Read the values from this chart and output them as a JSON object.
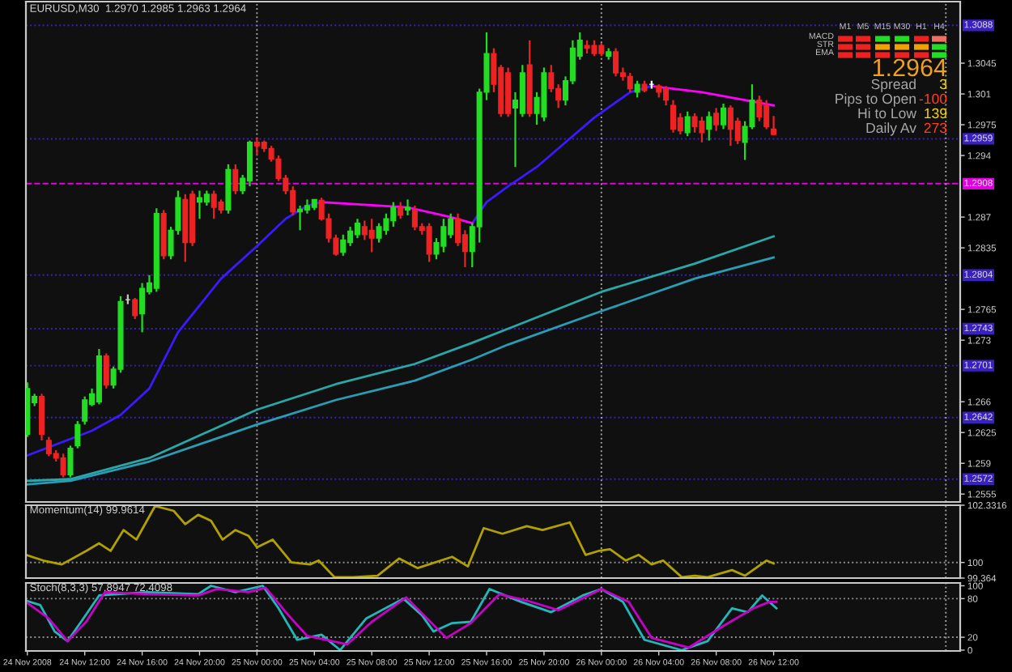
{
  "chart_data": [
    {
      "type": "candlestick",
      "title": "EURUSD,M30  1.2970 1.2985 1.2963 1.2964",
      "x": [
        "2008-11-24T08:00",
        "2008-11-24T08:30",
        "2008-11-24T09:00",
        "2008-11-24T09:30",
        "2008-11-24T10:00",
        "2008-11-24T10:30",
        "2008-11-24T11:00",
        "2008-11-24T11:30",
        "2008-11-24T12:00",
        "2008-11-24T12:30",
        "2008-11-24T13:00",
        "2008-11-24T13:30",
        "2008-11-24T14:00",
        "2008-11-24T14:30",
        "2008-11-24T15:00",
        "2008-11-24T15:30",
        "2008-11-24T16:00",
        "2008-11-24T16:30",
        "2008-11-24T17:00",
        "2008-11-24T17:30",
        "2008-11-24T18:00",
        "2008-11-24T18:30",
        "2008-11-24T19:00",
        "2008-11-24T19:30",
        "2008-11-24T20:00",
        "2008-11-24T20:30",
        "2008-11-24T21:00",
        "2008-11-24T21:30",
        "2008-11-24T22:00",
        "2008-11-24T22:30",
        "2008-11-24T23:00",
        "2008-11-24T23:30",
        "2008-11-25T00:00",
        "2008-11-25T00:30",
        "2008-11-25T01:00",
        "2008-11-25T01:30",
        "2008-11-25T02:00",
        "2008-11-25T02:30",
        "2008-11-25T03:00",
        "2008-11-25T03:30",
        "2008-11-25T04:00",
        "2008-11-25T04:30",
        "2008-11-25T05:00",
        "2008-11-25T05:30",
        "2008-11-25T06:00",
        "2008-11-25T06:30",
        "2008-11-25T07:00",
        "2008-11-25T07:30",
        "2008-11-25T08:00",
        "2008-11-25T08:30",
        "2008-11-25T09:00",
        "2008-11-25T09:30",
        "2008-11-25T10:00",
        "2008-11-25T10:30",
        "2008-11-25T11:00",
        "2008-11-25T11:30",
        "2008-11-25T12:00",
        "2008-11-25T12:30",
        "2008-11-25T13:00",
        "2008-11-25T13:30",
        "2008-11-25T14:00",
        "2008-11-25T14:30",
        "2008-11-25T15:00",
        "2008-11-25T15:30",
        "2008-11-25T16:00",
        "2008-11-25T16:30",
        "2008-11-25T17:00",
        "2008-11-25T17:30",
        "2008-11-25T18:00",
        "2008-11-25T18:30",
        "2008-11-25T19:00",
        "2008-11-25T19:30",
        "2008-11-25T20:00",
        "2008-11-25T20:30",
        "2008-11-25T21:00",
        "2008-11-25T21:30",
        "2008-11-25T22:00",
        "2008-11-25T22:30",
        "2008-11-25T23:00",
        "2008-11-25T23:30",
        "2008-11-26T00:00",
        "2008-11-26T00:30",
        "2008-11-26T01:00",
        "2008-11-26T01:30",
        "2008-11-26T02:00",
        "2008-11-26T02:30",
        "2008-11-26T03:00",
        "2008-11-26T03:30",
        "2008-11-26T04:00",
        "2008-11-26T04:30",
        "2008-11-26T05:00",
        "2008-11-26T05:30",
        "2008-11-26T06:00",
        "2008-11-26T06:30",
        "2008-11-26T07:00",
        "2008-11-26T07:30",
        "2008-11-26T08:00",
        "2008-11-26T08:30",
        "2008-11-26T09:00",
        "2008-11-26T09:30",
        "2008-11-26T10:00",
        "2008-11-26T10:30",
        "2008-11-26T11:00",
        "2008-11-26T11:30",
        "2008-11-26T12:00"
      ],
      "ohlc": [
        [
          1.2623,
          1.2682,
          1.262,
          1.2675
        ],
        [
          1.2659,
          1.2669,
          1.2655,
          1.2666
        ],
        [
          1.2666,
          1.2669,
          1.2616,
          1.2623
        ],
        [
          1.2616,
          1.262,
          1.2598,
          1.2601
        ],
        [
          1.2601,
          1.2605,
          1.2592,
          1.2596
        ],
        [
          1.2596,
          1.2601,
          1.2574,
          1.2577
        ],
        [
          1.2577,
          1.261,
          1.2574,
          1.2607
        ],
        [
          1.261,
          1.2638,
          1.2607,
          1.2634
        ],
        [
          1.2638,
          1.2666,
          1.2634,
          1.2662
        ],
        [
          1.2657,
          1.2675,
          1.2655,
          1.2669
        ],
        [
          1.266,
          1.272,
          1.2657,
          1.2712
        ],
        [
          1.2712,
          1.2715,
          1.2675,
          1.2679
        ],
        [
          1.2679,
          1.27,
          1.2675,
          1.2697
        ],
        [
          1.2697,
          1.278,
          1.2693,
          1.2774
        ],
        [
          1.2776,
          1.2782,
          1.2771,
          1.2776
        ],
        [
          1.2776,
          1.2778,
          1.2754,
          1.2758
        ],
        [
          1.276,
          1.2795,
          1.2739,
          1.2789
        ],
        [
          1.2785,
          1.2804,
          1.2782,
          1.2795
        ],
        [
          1.2789,
          1.288,
          1.2785,
          1.2874
        ],
        [
          1.2874,
          1.2878,
          1.2822,
          1.2826
        ],
        [
          1.2826,
          1.2859,
          1.2822,
          1.2855
        ],
        [
          1.2855,
          1.29,
          1.285,
          1.2892
        ],
        [
          1.289,
          1.2896,
          1.2819,
          1.2841
        ],
        [
          1.2896,
          1.29,
          1.2837,
          1.2841
        ],
        [
          1.2887,
          1.29,
          1.2868,
          1.2892
        ],
        [
          1.2887,
          1.29,
          1.2883,
          1.2896
        ],
        [
          1.2896,
          1.29,
          1.2868,
          1.2881
        ],
        [
          1.2887,
          1.289,
          1.2874,
          1.2878
        ],
        [
          1.2878,
          1.293,
          1.2874,
          1.2924
        ],
        [
          1.2924,
          1.293,
          1.2896,
          1.29
        ],
        [
          1.29,
          1.2918,
          1.2896,
          1.2914
        ],
        [
          1.2911,
          1.2957,
          1.2905,
          1.2955
        ],
        [
          1.2955,
          1.296,
          1.294,
          1.2951
        ],
        [
          1.2955,
          1.2957,
          1.2944,
          1.2948
        ],
        [
          1.2948,
          1.2951,
          1.2933,
          1.2936
        ],
        [
          1.2936,
          1.294,
          1.2911,
          1.2914
        ],
        [
          1.2914,
          1.2918,
          1.2896,
          1.29
        ],
        [
          1.29,
          1.2905,
          1.2872,
          1.2876
        ],
        [
          1.2876,
          1.2883,
          1.2855,
          1.2879
        ],
        [
          1.2878,
          1.289,
          1.2874,
          1.2883
        ],
        [
          1.2881,
          1.289,
          1.2878,
          1.289
        ],
        [
          1.2889,
          1.2892,
          1.2866,
          1.2868
        ],
        [
          1.2868,
          1.2874,
          1.2841,
          1.2846
        ],
        [
          1.2846,
          1.285,
          1.2826,
          1.2828
        ],
        [
          1.283,
          1.285,
          1.2826,
          1.2844
        ],
        [
          1.2841,
          1.2859,
          1.2837,
          1.2854
        ],
        [
          1.285,
          1.2868,
          1.2846,
          1.2863
        ],
        [
          1.2859,
          1.2866,
          1.2844,
          1.285
        ],
        [
          1.2855,
          1.2868,
          1.283,
          1.2846
        ],
        [
          1.2846,
          1.2863,
          1.2841,
          1.2859
        ],
        [
          1.2855,
          1.2874,
          1.285,
          1.2868
        ],
        [
          1.2866,
          1.2887,
          1.2859,
          1.2881
        ],
        [
          1.2881,
          1.2887,
          1.2868,
          1.2872
        ],
        [
          1.2878,
          1.289,
          1.2872,
          1.2881
        ],
        [
          1.2878,
          1.2883,
          1.2855,
          1.2859
        ],
        [
          1.2859,
          1.2863,
          1.285,
          1.2855
        ],
        [
          1.2859,
          1.2863,
          1.2819,
          1.2828
        ],
        [
          1.2828,
          1.2846,
          1.2822,
          1.2841
        ],
        [
          1.2837,
          1.2868,
          1.283,
          1.2859
        ],
        [
          1.285,
          1.2874,
          1.2846,
          1.2868
        ],
        [
          1.2868,
          1.2874,
          1.2837,
          1.2841
        ],
        [
          1.285,
          1.2855,
          1.2813,
          1.2831
        ],
        [
          1.2831,
          1.2863,
          1.2813,
          1.2859
        ],
        [
          1.2859,
          1.3016,
          1.2841,
          1.3012
        ],
        [
          1.3012,
          1.308,
          1.3003,
          1.3056
        ],
        [
          1.3056,
          1.3062,
          1.3012,
          1.3021
        ],
        [
          1.304,
          1.3043,
          1.2984,
          1.2988
        ],
        [
          1.3034,
          1.304,
          1.2984,
          1.2988
        ],
        [
          1.2994,
          1.3012,
          1.2927,
          1.3003
        ],
        [
          1.2988,
          1.3043,
          1.2984,
          1.3034
        ],
        [
          1.3043,
          1.3071,
          1.2984,
          1.2988
        ],
        [
          1.2988,
          1.3012,
          1.2975,
          1.3006
        ],
        [
          1.2984,
          1.304,
          1.2979,
          1.3034
        ],
        [
          1.3034,
          1.3043,
          1.3012,
          1.3016
        ],
        [
          1.3016,
          1.3021,
          1.2994,
          1.3003
        ],
        [
          1.3003,
          1.303,
          1.2997,
          1.3025
        ],
        [
          1.3025,
          1.3071,
          1.3021,
          1.3062
        ],
        [
          1.3053,
          1.308,
          1.3049,
          1.3071
        ],
        [
          1.3065,
          1.3071,
          1.3056,
          1.3062
        ],
        [
          1.3065,
          1.3071,
          1.3053,
          1.3056
        ],
        [
          1.3065,
          1.3068,
          1.3053,
          1.3056
        ],
        [
          1.3053,
          1.3062,
          1.3049,
          1.3058
        ],
        [
          1.3058,
          1.3062,
          1.303,
          1.3034
        ],
        [
          1.3034,
          1.304,
          1.3025,
          1.303
        ],
        [
          1.303,
          1.3034,
          1.3012,
          1.3016
        ],
        [
          1.3012,
          1.3025,
          1.3006,
          1.3021
        ],
        [
          1.3021,
          1.3025,
          1.3012,
          1.3014
        ],
        [
          1.3021,
          1.3025,
          1.3016,
          1.3021
        ],
        [
          1.3019,
          1.3021,
          1.3006,
          1.3012
        ],
        [
          1.3016,
          1.3019,
          1.2997,
          1.3003
        ],
        [
          1.2997,
          1.3003,
          1.2966,
          1.297
        ],
        [
          1.2983,
          1.2988,
          1.2964,
          1.2968
        ],
        [
          1.2966,
          1.299,
          1.2962,
          1.2984
        ],
        [
          1.2984,
          1.2988,
          1.2966,
          1.2973
        ],
        [
          1.2979,
          1.2984,
          1.2955,
          1.2966
        ],
        [
          1.297,
          1.299,
          1.2957,
          1.2984
        ],
        [
          1.2988,
          1.2994,
          1.2968,
          1.2975
        ],
        [
          1.2975,
          1.2999,
          1.297,
          1.2994
        ],
        [
          1.2994,
          1.2997,
          1.2951,
          1.297
        ],
        [
          1.2979,
          1.2983,
          1.2953,
          1.2957
        ],
        [
          1.2955,
          1.2979,
          1.2935,
          1.2973
        ],
        [
          1.2973,
          1.3021,
          1.297,
          1.3003
        ],
        [
          1.3003,
          1.3008,
          1.2979,
          1.2984
        ],
        [
          1.2997,
          1.3003,
          1.297,
          1.2973
        ],
        [
          1.297,
          1.2985,
          1.2963,
          1.2964
        ]
      ],
      "colors": [
        "#22dd22",
        "#22dd22",
        "#ee2222",
        "#ee2222",
        "#ee2222",
        "#ee2222",
        "#22dd22",
        "#22dd22",
        "#22dd22",
        "#22dd22",
        "#22dd22",
        "#ee2222",
        "#22dd22",
        "#22dd22",
        "#c8c8c8",
        "#ee2222",
        "#22dd22",
        "#22dd22",
        "#22dd22",
        "#ee2222",
        "#22dd22",
        "#22dd22",
        "#ee2222",
        "#ee2222",
        "#22dd22",
        "#22dd22",
        "#ee2222",
        "#ee2222",
        "#22dd22",
        "#ee2222",
        "#22dd22",
        "#22dd22",
        "#ee2222",
        "#ee2222",
        "#ee2222",
        "#ee2222",
        "#ee2222",
        "#ee2222",
        "#22dd22",
        "#22dd22",
        "#22dd22",
        "#ee2222",
        "#ee2222",
        "#ee2222",
        "#22dd22",
        "#22dd22",
        "#22dd22",
        "#ee2222",
        "#ee2222",
        "#22dd22",
        "#22dd22",
        "#22dd22",
        "#ee2222",
        "#22dd22",
        "#ee2222",
        "#ee2222",
        "#ee2222",
        "#22dd22",
        "#22dd22",
        "#22dd22",
        "#ee2222",
        "#ee2222",
        "#22dd22",
        "#22dd22",
        "#22dd22",
        "#ee2222",
        "#ee2222",
        "#ee2222",
        "#22dd22",
        "#22dd22",
        "#ee2222",
        "#22dd22",
        "#22dd22",
        "#ee2222",
        "#ee2222",
        "#22dd22",
        "#22dd22",
        "#22dd22",
        "#ee2222",
        "#ee2222",
        "#ee2222",
        "#22dd22",
        "#ee2222",
        "#ee2222",
        "#ee2222",
        "#22dd22",
        "#ee2222",
        "#ffffff",
        "#ee2222",
        "#ee2222",
        "#ee2222",
        "#ee2222",
        "#22dd22",
        "#ee2222",
        "#ee2222",
        "#22dd22",
        "#ee2222",
        "#22dd22",
        "#ee2222",
        "#ee2222",
        "#22dd22",
        "#22dd22",
        "#ee2222",
        "#ee2222",
        "#ee2222"
      ],
      "series": [
        {
          "type": "line",
          "color": "#3a1aff",
          "x": [
            "2008-11-24T08:00",
            "2008-11-24T12:30",
            "2008-11-24T14:30",
            "2008-11-24T16:30",
            "2008-11-24T18:30",
            "2008-11-24T21:30",
            "2008-11-25T00:00",
            "2008-11-25T02:00",
            "2008-11-25T03:30",
            "2008-11-25T04:30",
            "2008-11-25T09:00",
            "2008-11-25T15:00",
            "2008-11-25T16:00",
            "2008-11-25T17:30",
            "2008-11-25T19:30",
            "2008-11-25T21:30",
            "2008-11-25T23:30",
            "2008-11-26T02:00",
            "2008-11-26T03:30"
          ],
          "values": [
            1.2599,
            1.2627,
            1.2645,
            1.2675,
            1.2739,
            1.28,
            1.2837,
            1.2868,
            1.2883,
            1.2887,
            null,
            1.2863,
            1.2887,
            1.2905,
            1.2927,
            1.2955,
            1.2983,
            1.3012,
            1.3019
          ]
        },
        {
          "type": "line",
          "color": "#ff00ff",
          "x": [
            "2008-11-25T04:30",
            "2008-11-25T10:30",
            "2008-11-25T13:30",
            "2008-11-25T15:00",
            "2008-11-25T21:00",
            "2008-11-26T03:30",
            "2008-11-26T07:00",
            "2008-11-26T12:00"
          ],
          "values": [
            1.2887,
            1.2881,
            1.287,
            1.2863,
            null,
            1.3019,
            1.3012,
            1.2997
          ]
        },
        {
          "type": "line",
          "color": "#2aa8a8",
          "x": [
            "2008-11-24T08:00",
            "2008-11-24T11:00",
            "2008-11-24T16:30",
            "2008-11-25T00:00",
            "2008-11-25T05:30",
            "2008-11-25T11:00",
            "2008-11-25T15:00",
            "2008-11-25T17:30",
            "2008-11-26T00:00",
            "2008-11-26T06:30",
            "2008-11-26T12:00"
          ],
          "values": [
            1.257,
            1.2572,
            1.2596,
            1.2651,
            1.268,
            1.2703,
            1.2727,
            1.2743,
            1.2785,
            1.2817,
            1.2848
          ]
        },
        {
          "type": "line",
          "color": "#2a9cb4",
          "x": [
            "2008-11-24T08:00",
            "2008-11-24T11:00",
            "2008-11-24T16:30",
            "2008-11-25T00:00",
            "2008-11-25T05:30",
            "2008-11-25T11:00",
            "2008-11-25T15:00",
            "2008-11-25T17:30",
            "2008-11-26T00:00",
            "2008-11-26T06:30",
            "2008-11-26T12:00"
          ],
          "values": [
            1.2566,
            1.257,
            1.2592,
            1.2634,
            1.2662,
            1.2684,
            1.2708,
            1.2725,
            1.2763,
            1.28,
            1.2824
          ]
        }
      ],
      "xlim": [
        "2008-11-24T07:54",
        "2008-11-27T01:00"
      ],
      "ylim": [
        1.2546,
        1.3115
      ],
      "yticks": [
        1.3045,
        1.301,
        1.2975,
        1.294,
        1.287,
        1.2835,
        1.2765,
        1.273,
        1.266,
        1.2625,
        1.259,
        1.2555
      ],
      "tick_labels": "y",
      "ref_lines": [
        {
          "axis": "y",
          "value": 1.3088,
          "label": "1.3088",
          "color": "#3a20c0",
          "line_style": "dotted"
        },
        {
          "axis": "y",
          "value": 1.2959,
          "label": "1.2959",
          "color": "#3a20c0",
          "line_style": "dotted"
        },
        {
          "axis": "y",
          "value": 1.2908,
          "label": "1.2908",
          "color": "#e000e0",
          "line_style": "dashed"
        },
        {
          "axis": "y",
          "value": 1.2804,
          "label": "1.2804",
          "color": "#3a20c0",
          "line_style": "dotted"
        },
        {
          "axis": "y",
          "value": 1.2743,
          "label": "1.2743",
          "color": "#3a20c0",
          "line_style": "dotted"
        },
        {
          "axis": "y",
          "value": 1.2701,
          "label": "1.2701",
          "color": "#3a20c0",
          "line_style": "dotted"
        },
        {
          "axis": "y",
          "value": 1.2642,
          "label": "1.2642",
          "color": "#3a20c0",
          "line_style": "dotted"
        },
        {
          "axis": "y",
          "value": 1.2572,
          "label": "1.2572",
          "color": "#3a20c0",
          "line_style": "dotted"
        },
        {
          "axis": "x",
          "value": "2008-11-25T00:00",
          "color": "#a0a0a0",
          "line_style": "dotted"
        },
        {
          "axis": "x",
          "value": "2008-11-26T00:00",
          "color": "#a0a0a0",
          "line_style": "dotted"
        },
        {
          "axis": "x",
          "value": "2008-11-27T00:00",
          "color": "#a0a0a0",
          "line_style": "dotted"
        }
      ],
      "annotations": [
        "1.2964",
        "Spread",
        "3",
        "Pips to Open",
        "-100",
        "Hi to Low",
        "139",
        "Daily Av",
        "273",
        "M1",
        "M5",
        "M15",
        "M30",
        "H1",
        "H4",
        "MACD",
        "STR",
        "EMA"
      ]
    },
    {
      "type": "line",
      "title": "Momentum(14) 99.9614",
      "series": [
        {
          "color": "#b0a000",
          "x": [
            "2008-11-24T07:54",
            "2008-11-24T09:06",
            "2008-11-24T10:24",
            "2008-11-24T12:06",
            "2008-11-24T13:00",
            "2008-11-24T13:48",
            "2008-11-24T14:42",
            "2008-11-24T15:36",
            "2008-11-24T16:54",
            "2008-11-24T18:12",
            "2008-11-24T19:00",
            "2008-11-24T19:54",
            "2008-11-24T20:48",
            "2008-11-24T21:36",
            "2008-11-24T22:30",
            "2008-11-24T23:24",
            "2008-11-25T00:00",
            "2008-11-25T01:06",
            "2008-11-25T02:24",
            "2008-11-25T03:42",
            "2008-11-25T04:18",
            "2008-11-25T05:24",
            "2008-11-25T06:42",
            "2008-11-25T08:24",
            "2008-11-25T09:54",
            "2008-11-25T11:12",
            "2008-11-25T13:36",
            "2008-11-25T14:42",
            "2008-11-25T15:48",
            "2008-11-25T17:06",
            "2008-11-25T18:48",
            "2008-11-25T19:54",
            "2008-11-25T21:48",
            "2008-11-25T22:54",
            "2008-11-25T23:48",
            "2008-11-26T00:36",
            "2008-11-26T01:42",
            "2008-11-26T02:36",
            "2008-11-26T03:30",
            "2008-11-26T04:18",
            "2008-11-26T05:36",
            "2008-11-26T06:30",
            "2008-11-26T07:24",
            "2008-11-26T09:06",
            "2008-11-26T10:00",
            "2008-11-26T11:30",
            "2008-11-26T12:00"
          ],
          "values": [
            100.31,
            100.08,
            99.92,
            100.47,
            100.78,
            100.47,
            101.32,
            100.93,
            102.3,
            102.1,
            101.56,
            101.94,
            101.7,
            100.93,
            101.32,
            101.09,
            100.62,
            100.93,
            100.0,
            99.92,
            100.08,
            99.4,
            99.4,
            99.46,
            100.16,
            99.77,
            100.23,
            99.84,
            101.4,
            101.17,
            101.48,
            101.32,
            101.63,
            100.31,
            100.47,
            100.54,
            100.08,
            100.31,
            99.92,
            100.08,
            99.4,
            99.46,
            99.4,
            99.69,
            99.46,
            100.08,
            99.96
          ]
        }
      ],
      "xlim": [
        "2008-11-24T07:54",
        "2008-11-27T01:00"
      ],
      "ylim": [
        99.364,
        102.3316
      ],
      "yticks": [
        102.3316,
        100,
        99.364
      ],
      "tick_labels": "y",
      "ref_lines": [
        {
          "axis": "y",
          "value": 100,
          "color": "#909090",
          "line_style": "dotted"
        },
        {
          "axis": "x",
          "value": "2008-11-25T00:00",
          "color": "#a0a0a0",
          "line_style": "dotted"
        },
        {
          "axis": "x",
          "value": "2008-11-26T00:00",
          "color": "#a0a0a0",
          "line_style": "dotted"
        },
        {
          "axis": "x",
          "value": "2008-11-27T00:00",
          "color": "#a0a0a0",
          "line_style": "dotted"
        }
      ]
    },
    {
      "type": "line",
      "title": "Stoch(8,3,3) 57.8947 72.4098",
      "series": [
        {
          "color": "#20b8b8",
          "x": [
            "2008-11-24T07:54",
            "2008-11-24T08:54",
            "2008-11-24T09:54",
            "2008-11-24T10:48",
            "2008-11-24T11:54",
            "2008-11-24T13:00",
            "2008-11-24T16:24",
            "2008-11-24T19:54",
            "2008-11-24T20:48",
            "2008-11-24T22:30",
            "2008-11-25T00:24",
            "2008-11-25T01:30",
            "2008-11-25T02:48",
            "2008-11-25T04:30",
            "2008-11-25T05:48",
            "2008-11-25T07:36",
            "2008-11-25T10:12",
            "2008-11-25T11:30",
            "2008-11-25T12:18",
            "2008-11-25T13:36",
            "2008-11-25T14:54",
            "2008-11-25T16:12",
            "2008-11-25T18:24",
            "2008-11-25T20:30",
            "2008-11-25T22:42",
            "2008-11-26T00:00",
            "2008-11-26T01:30",
            "2008-11-26T03:00",
            "2008-11-26T05:36",
            "2008-11-26T07:24",
            "2008-11-26T09:06",
            "2008-11-26T10:12",
            "2008-11-26T11:12",
            "2008-11-26T12:12"
          ],
          "values": [
            77,
            70,
            29,
            14,
            49,
            85,
            90,
            87,
            100,
            90,
            100,
            65,
            16,
            24,
            0,
            49,
            80,
            54,
            29,
            42,
            44,
            95,
            75,
            59,
            85,
            95,
            75,
            16,
            0,
            14,
            65,
            59,
            85,
            65
          ]
        },
        {
          "color": "#c800c8",
          "x": [
            "2008-11-24T07:54",
            "2008-11-24T09:30",
            "2008-11-24T10:48",
            "2008-11-24T12:06",
            "2008-11-24T13:24",
            "2008-11-24T16:24",
            "2008-11-24T19:54",
            "2008-11-24T21:12",
            "2008-11-24T23:24",
            "2008-11-25T00:36",
            "2008-11-25T02:12",
            "2008-11-25T03:30",
            "2008-11-25T06:18",
            "2008-11-25T08:00",
            "2008-11-25T10:24",
            "2008-11-25T13:12",
            "2008-11-25T14:54",
            "2008-11-25T16:54",
            "2008-11-25T18:48",
            "2008-11-25T21:00",
            "2008-11-26T00:00",
            "2008-11-26T01:54",
            "2008-11-26T03:30",
            "2008-11-26T06:06",
            "2008-11-26T08:36",
            "2008-11-26T10:36",
            "2008-11-26T11:42",
            "2008-11-26T12:12"
          ],
          "values": [
            75,
            49,
            14,
            44,
            90,
            87,
            85,
            95,
            90,
            97,
            54,
            22,
            9,
            44,
            82,
            19,
            42,
            87,
            77,
            62,
            95,
            75,
            19,
            4,
            39,
            65,
            75,
            75
          ]
        }
      ],
      "xlim": [
        "2008-11-24T07:54",
        "2008-11-27T01:00"
      ],
      "ylim": [
        -1.3,
        104.4
      ],
      "yticks": [
        100,
        80,
        20,
        0
      ],
      "xticks": [
        {
          "value": "2008-11-24T08:00",
          "label": "24 Nov 2008"
        },
        {
          "value": "2008-11-24T12:00",
          "label": "24 Nov 12:00"
        },
        {
          "value": "2008-11-24T16:00",
          "label": "24 Nov 16:00"
        },
        {
          "value": "2008-11-24T20:00",
          "label": "24 Nov 20:00"
        },
        {
          "value": "2008-11-25T00:00",
          "label": "25 Nov 00:00"
        },
        {
          "value": "2008-11-25T04:00",
          "label": "25 Nov 04:00"
        },
        {
          "value": "2008-11-25T08:00",
          "label": "25 Nov 08:00"
        },
        {
          "value": "2008-11-25T12:00",
          "label": "25 Nov 12:00"
        },
        {
          "value": "2008-11-25T16:00",
          "label": "25 Nov 16:00"
        },
        {
          "value": "2008-11-25T20:00",
          "label": "25 Nov 20:00"
        },
        {
          "value": "2008-11-26T00:00",
          "label": "26 Nov 00:00"
        },
        {
          "value": "2008-11-26T04:00",
          "label": "26 Nov 04:00"
        },
        {
          "value": "2008-11-26T08:00",
          "label": "26 Nov 08:00"
        },
        {
          "value": "2008-11-26T12:00",
          "label": "26 Nov 12:00"
        }
      ],
      "ref_lines": [
        {
          "axis": "y",
          "value": 80,
          "color": "#909090",
          "line_style": "dotted"
        },
        {
          "axis": "y",
          "value": 20,
          "color": "#909090",
          "line_style": "dotted"
        },
        {
          "axis": "x",
          "value": "2008-11-25T00:00",
          "color": "#a0a0a0",
          "line_style": "dotted"
        },
        {
          "axis": "x",
          "value": "2008-11-26T00:00",
          "color": "#a0a0a0",
          "line_style": "dotted"
        },
        {
          "axis": "x",
          "value": "2008-11-27T00:00",
          "color": "#a0a0a0",
          "line_style": "dotted"
        }
      ]
    }
  ]
}
